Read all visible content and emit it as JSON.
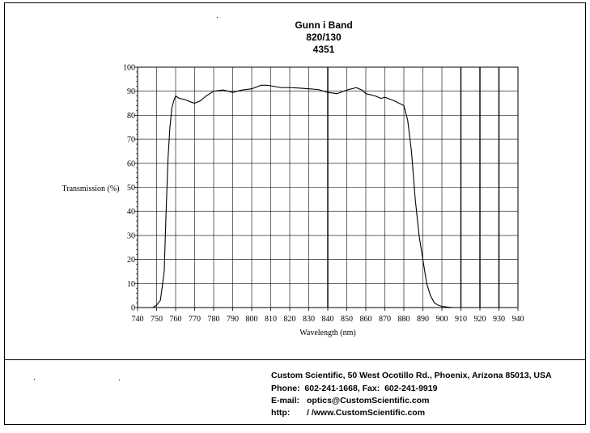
{
  "header": {
    "title": "Gunn i Band",
    "line2": "820/130",
    "line3": "4351"
  },
  "chart_data": {
    "type": "line",
    "title": "Gunn i Band",
    "xlabel": "Wavelength (nm)",
    "ylabel": "Transmission (%)",
    "xlim": [
      740,
      940
    ],
    "ylim": [
      0,
      100
    ],
    "xticks": [
      740,
      750,
      760,
      770,
      780,
      790,
      800,
      810,
      820,
      830,
      840,
      850,
      860,
      870,
      880,
      890,
      900,
      910,
      920,
      930,
      940
    ],
    "yticks": [
      0,
      10,
      20,
      30,
      40,
      50,
      60,
      70,
      80,
      90,
      100
    ],
    "grid": true,
    "series": [
      {
        "x": [
          740,
          745,
          748,
          750,
          752,
          754,
          755,
          756,
          757,
          758,
          759,
          760,
          762,
          765,
          768,
          770,
          773,
          776,
          780,
          785,
          790,
          795,
          800,
          805,
          808,
          812,
          815,
          820,
          825,
          830,
          835,
          840,
          845,
          850,
          855,
          858,
          860,
          865,
          868,
          870,
          875,
          880,
          882,
          884,
          885,
          886,
          888,
          890,
          892,
          894,
          896,
          898,
          900,
          903,
          906,
          910
        ],
        "y": [
          0,
          0,
          0,
          1,
          3,
          15,
          40,
          62,
          75,
          83,
          86,
          88,
          87,
          86.5,
          85.5,
          85,
          86,
          88,
          90,
          90.5,
          89.5,
          90.5,
          91,
          92.5,
          92.5,
          92,
          91.5,
          91.5,
          91.3,
          91,
          90.7,
          89.5,
          89,
          90.5,
          91.5,
          90.5,
          89,
          88,
          87,
          87.5,
          86,
          84,
          78,
          65,
          55,
          45,
          30,
          20,
          10,
          5,
          2,
          1,
          0.5,
          0.2,
          0,
          0
        ]
      }
    ]
  },
  "footer": {
    "company": "Custom Scientific, 50 West Ocotillo Rd., Phoenix, Arizona 85013, USA",
    "phone": "Phone:  602-241-1668, Fax:  602-241-9919",
    "email_label": "E-mail:",
    "email": "optics@CustomScientific.com",
    "web_label": "http:",
    "web": "/ /www.CustomScientific.com"
  }
}
